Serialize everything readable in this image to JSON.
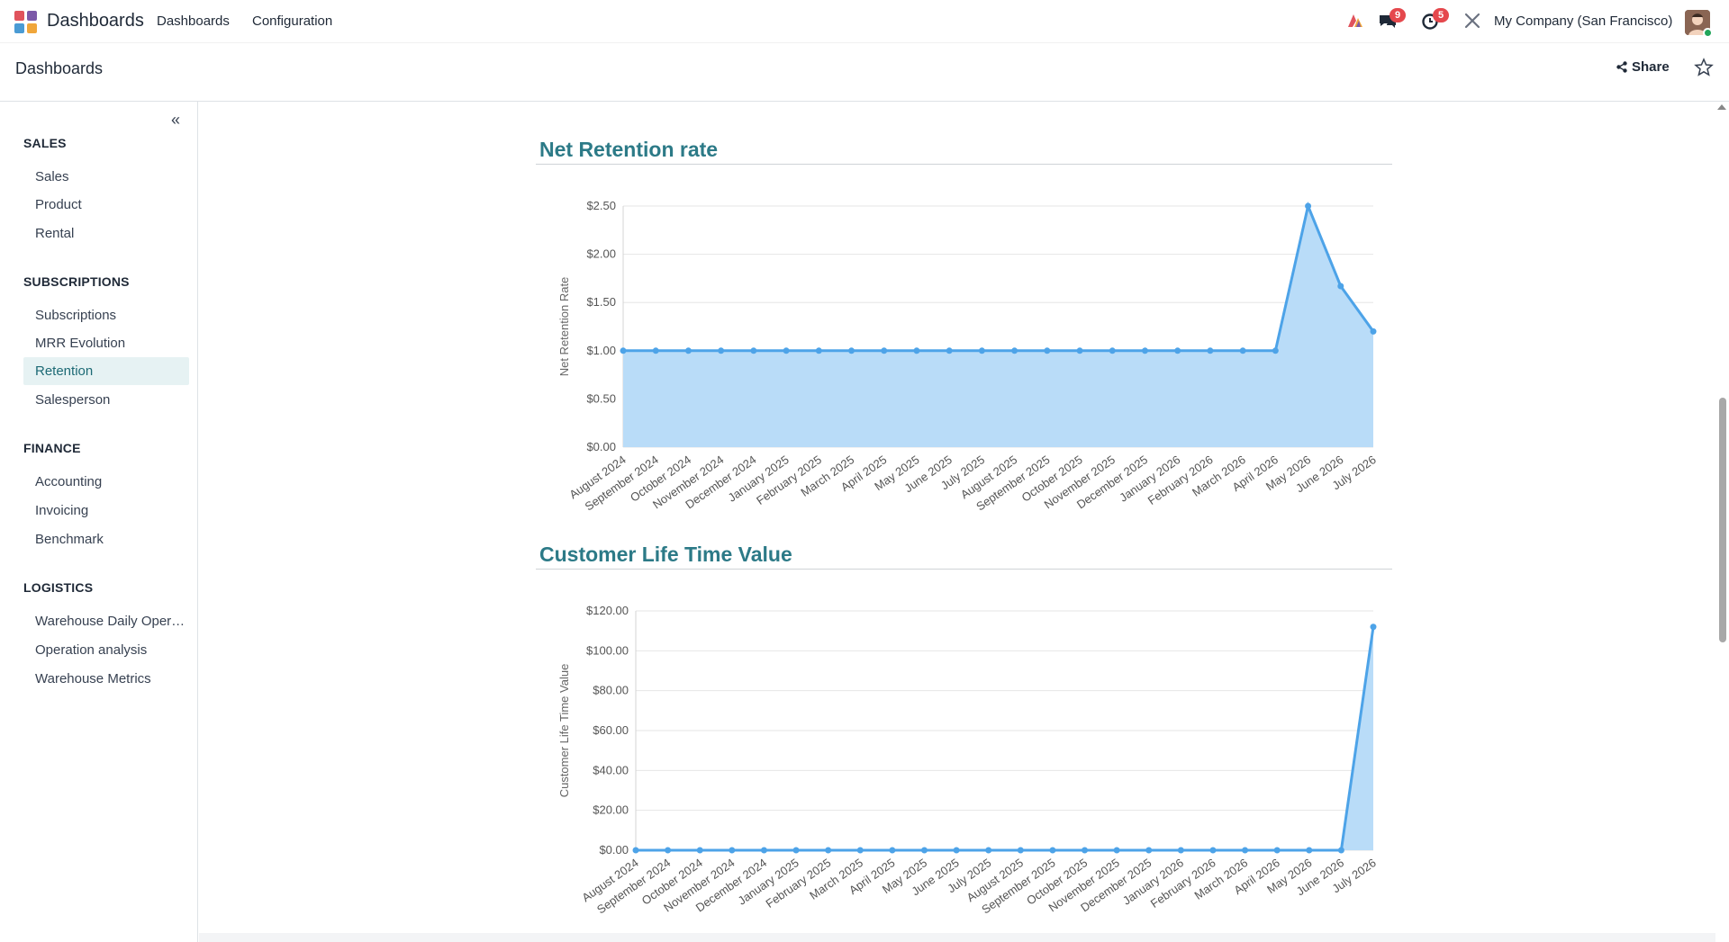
{
  "navbar": {
    "app_name": "Dashboards",
    "menus": [
      "Dashboards",
      "Configuration"
    ],
    "messages_badge": "9",
    "activities_badge": "5",
    "company": "My Company (San Francisco)"
  },
  "control": {
    "breadcrumb": "Dashboards",
    "share_label": "Share"
  },
  "sidebar": {
    "sections": [
      {
        "title": "SALES",
        "items": [
          "Sales",
          "Product",
          "Rental"
        ]
      },
      {
        "title": "SUBSCRIPTIONS",
        "items": [
          "Subscriptions",
          "MRR Evolution",
          "Retention",
          "Salesperson"
        ]
      },
      {
        "title": "FINANCE",
        "items": [
          "Accounting",
          "Invoicing",
          "Benchmark"
        ]
      },
      {
        "title": "LOGISTICS",
        "items": [
          "Warehouse Daily Operations",
          "Operation analysis",
          "Warehouse Metrics"
        ]
      }
    ],
    "active_item": "Retention"
  },
  "colors": {
    "accent": "#2c7a87",
    "line": "#4da3e8",
    "fill": "#b9dcf8",
    "active_bg": "#e6f2f3"
  },
  "chart_data": [
    {
      "type": "area",
      "title": "Net Retention rate",
      "ylabel": "Net Retention Rate",
      "xlabel": "",
      "ylim": [
        0,
        2.5
      ],
      "yticks": [
        "$0.00",
        "$0.50",
        "$1.00",
        "$1.50",
        "$2.00",
        "$2.50"
      ],
      "categories": [
        "August 2024",
        "September 2024",
        "October 2024",
        "November 2024",
        "December 2024",
        "January 2025",
        "February 2025",
        "March 2025",
        "April 2025",
        "May 2025",
        "June 2025",
        "July 2025",
        "August 2025",
        "September 2025",
        "October 2025",
        "November 2025",
        "December 2025",
        "January 2026",
        "February 2026",
        "March 2026",
        "April 2026",
        "May 2026",
        "June 2026",
        "July 2026"
      ],
      "values": [
        1,
        1,
        1,
        1,
        1,
        1,
        1,
        1,
        1,
        1,
        1,
        1,
        1,
        1,
        1,
        1,
        1,
        1,
        1,
        1,
        1,
        2.5,
        1.67,
        1.2
      ]
    },
    {
      "type": "area",
      "title": "Customer Life Time Value",
      "ylabel": "Customer Life Time Value",
      "xlabel": "",
      "ylim": [
        0,
        120
      ],
      "yticks": [
        "$0.00",
        "$20.00",
        "$40.00",
        "$60.00",
        "$80.00",
        "$100.00",
        "$120.00"
      ],
      "categories": [
        "August 2024",
        "September 2024",
        "October 2024",
        "November 2024",
        "December 2024",
        "January 2025",
        "February 2025",
        "March 2025",
        "April 2025",
        "May 2025",
        "June 2025",
        "July 2025",
        "August 2025",
        "September 2025",
        "October 2025",
        "November 2025",
        "December 2025",
        "January 2026",
        "February 2026",
        "March 2026",
        "April 2026",
        "May 2026",
        "June 2026",
        "July 2026"
      ],
      "values": [
        0,
        0,
        0,
        0,
        0,
        0,
        0,
        0,
        0,
        0,
        0,
        0,
        0,
        0,
        0,
        0,
        0,
        0,
        0,
        0,
        0,
        0,
        0,
        112
      ]
    }
  ]
}
